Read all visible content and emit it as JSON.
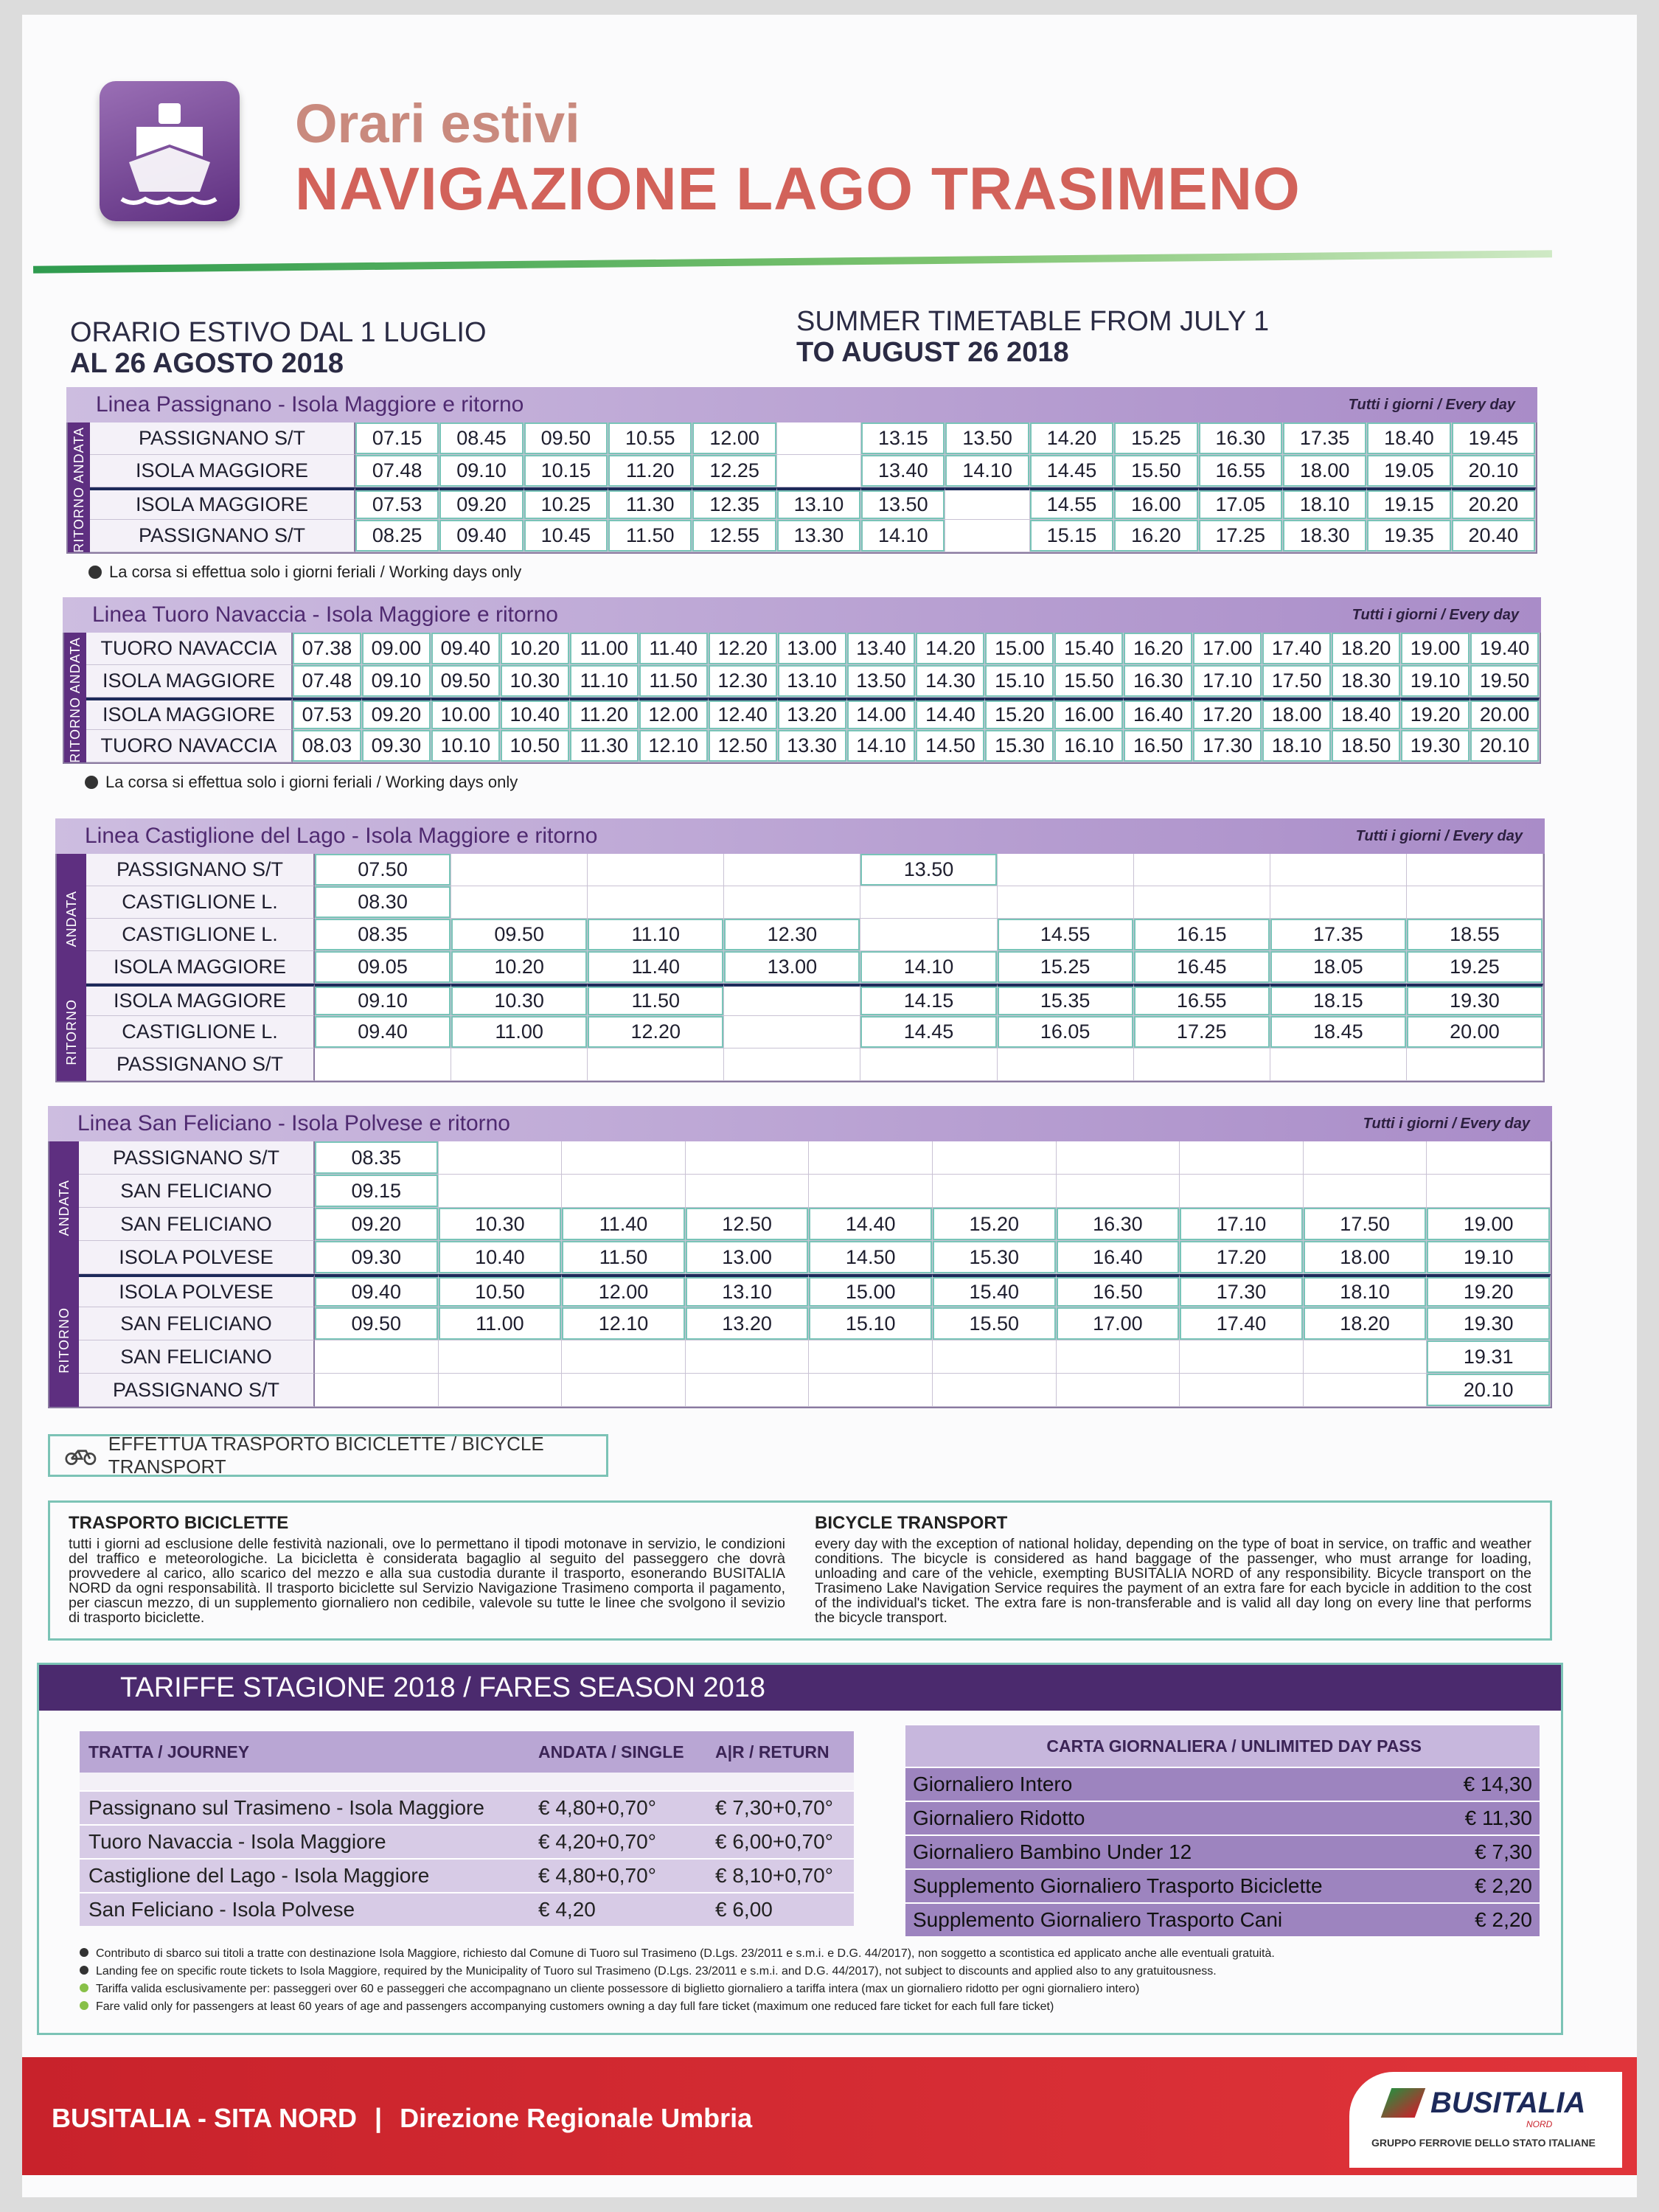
{
  "header": {
    "title": "Orari estivi",
    "subtitle": "NAVIGAZIONE LAGO TRASIMENO"
  },
  "validity": {
    "it_line1": "ORARIO ESTIVO DAL 1 LUGLIO",
    "it_line2": "AL 26 AGOSTO 2018",
    "en_line1": "SUMMER TIMETABLE FROM JULY 1",
    "en_line2": "TO AUGUST 26 2018"
  },
  "timetables": [
    {
      "title": "Linea Passignano - Isola Maggiore e ritorno",
      "every_day": "Tutti i giorni / Every day",
      "andata_label": "ANDATA",
      "ritorno_label": "RITORNO",
      "andata": [
        {
          "stop": "PASSIGNANO S/T",
          "times": [
            "07.15",
            "08.45",
            "09.50",
            "10.55",
            "12.00",
            null,
            "13.15",
            "13.50",
            "14.20",
            "15.25",
            "16.30",
            "17.35",
            "18.40",
            "19.45"
          ]
        },
        {
          "stop": "ISOLA MAGGIORE",
          "times": [
            "07.48",
            "09.10",
            "10.15",
            "11.20",
            "12.25",
            null,
            "13.40",
            "14.10",
            "14.45",
            "15.50",
            "16.55",
            "18.00",
            "19.05",
            "20.10"
          ]
        }
      ],
      "ritorno": [
        {
          "stop": "ISOLA MAGGIORE",
          "times": [
            "07.53",
            "09.20",
            "10.25",
            "11.30",
            "12.35",
            "13.10",
            "13.50",
            null,
            "14.55",
            "16.00",
            "17.05",
            "18.10",
            "19.15",
            "20.20"
          ]
        },
        {
          "stop": "PASSIGNANO S/T",
          "times": [
            "08.25",
            "09.40",
            "10.45",
            "11.50",
            "12.55",
            "13.30",
            "14.10",
            null,
            "15.15",
            "16.20",
            "17.25",
            "18.30",
            "19.35",
            "20.40"
          ]
        }
      ],
      "note": "La corsa si effettua solo i giorni feriali / Working days only"
    },
    {
      "title": "Linea Tuoro Navaccia - Isola Maggiore e ritorno",
      "every_day": "Tutti i giorni / Every day",
      "andata_label": "ANDATA",
      "ritorno_label": "RITORNO",
      "andata": [
        {
          "stop": "TUORO NAVACCIA",
          "times": [
            "07.38",
            "09.00",
            "09.40",
            "10.20",
            "11.00",
            "11.40",
            "12.20",
            "13.00",
            "13.40",
            "14.20",
            "15.00",
            "15.40",
            "16.20",
            "17.00",
            "17.40",
            "18.20",
            "19.00",
            "19.40"
          ]
        },
        {
          "stop": "ISOLA MAGGIORE",
          "times": [
            "07.48",
            "09.10",
            "09.50",
            "10.30",
            "11.10",
            "11.50",
            "12.30",
            "13.10",
            "13.50",
            "14.30",
            "15.10",
            "15.50",
            "16.30",
            "17.10",
            "17.50",
            "18.30",
            "19.10",
            "19.50"
          ]
        }
      ],
      "ritorno": [
        {
          "stop": "ISOLA MAGGIORE",
          "times": [
            "07.53",
            "09.20",
            "10.00",
            "10.40",
            "11.20",
            "12.00",
            "12.40",
            "13.20",
            "14.00",
            "14.40",
            "15.20",
            "16.00",
            "16.40",
            "17.20",
            "18.00",
            "18.40",
            "19.20",
            "20.00"
          ]
        },
        {
          "stop": "TUORO NAVACCIA",
          "times": [
            "08.03",
            "09.30",
            "10.10",
            "10.50",
            "11.30",
            "12.10",
            "12.50",
            "13.30",
            "14.10",
            "14.50",
            "15.30",
            "16.10",
            "16.50",
            "17.30",
            "18.10",
            "18.50",
            "19.30",
            "20.10"
          ]
        }
      ],
      "note": "La corsa si effettua solo i giorni feriali / Working days only"
    },
    {
      "title": "Linea Castiglione del Lago - Isola Maggiore e ritorno",
      "every_day": "Tutti i giorni / Every day",
      "andata_label": "ANDATA",
      "ritorno_label": "RITORNO",
      "andata": [
        {
          "stop": "PASSIGNANO S/T",
          "times": [
            "07.50",
            null,
            null,
            null,
            "13.50",
            null,
            null,
            null,
            null
          ]
        },
        {
          "stop": "CASTIGLIONE L.",
          "times": [
            "08.30",
            null,
            null,
            null,
            null,
            null,
            null,
            null,
            null
          ]
        },
        {
          "stop": "CASTIGLIONE L.",
          "times": [
            "08.35",
            "09.50",
            "11.10",
            "12.30",
            null,
            "14.55",
            "16.15",
            "17.35",
            "18.55"
          ]
        },
        {
          "stop": "ISOLA MAGGIORE",
          "times": [
            "09.05",
            "10.20",
            "11.40",
            "13.00",
            "14.10",
            "15.25",
            "16.45",
            "18.05",
            "19.25"
          ]
        }
      ],
      "ritorno": [
        {
          "stop": "ISOLA MAGGIORE",
          "times": [
            "09.10",
            "10.30",
            "11.50",
            null,
            "14.15",
            "15.35",
            "16.55",
            "18.15",
            "19.30"
          ]
        },
        {
          "stop": "CASTIGLIONE L.",
          "times": [
            "09.40",
            "11.00",
            "12.20",
            null,
            "14.45",
            "16.05",
            "17.25",
            "18.45",
            "20.00"
          ]
        },
        {
          "stop": "PASSIGNANO S/T",
          "times": [
            null,
            null,
            null,
            null,
            null,
            null,
            null,
            null,
            null
          ]
        }
      ]
    },
    {
      "title": "Linea San Feliciano - Isola Polvese e ritorno",
      "every_day": "Tutti i giorni / Every day",
      "andata_label": "ANDATA",
      "ritorno_label": "RITORNO",
      "andata": [
        {
          "stop": "PASSIGNANO S/T",
          "times": [
            "08.35",
            null,
            null,
            null,
            null,
            null,
            null,
            null,
            null,
            null
          ]
        },
        {
          "stop": "SAN FELICIANO",
          "times": [
            "09.15",
            null,
            null,
            null,
            null,
            null,
            null,
            null,
            null,
            null
          ]
        },
        {
          "stop": "SAN FELICIANO",
          "times": [
            "09.20",
            "10.30",
            "11.40",
            "12.50",
            "14.40",
            "15.20",
            "16.30",
            "17.10",
            "17.50",
            "19.00"
          ]
        },
        {
          "stop": "ISOLA POLVESE",
          "times": [
            "09.30",
            "10.40",
            "11.50",
            "13.00",
            "14.50",
            "15.30",
            "16.40",
            "17.20",
            "18.00",
            "19.10"
          ]
        }
      ],
      "ritorno": [
        {
          "stop": "ISOLA POLVESE",
          "times": [
            "09.40",
            "10.50",
            "12.00",
            "13.10",
            "15.00",
            "15.40",
            "16.50",
            "17.30",
            "18.10",
            "19.20"
          ]
        },
        {
          "stop": "SAN FELICIANO",
          "times": [
            "09.50",
            "11.00",
            "12.10",
            "13.20",
            "15.10",
            "15.50",
            "17.00",
            "17.40",
            "18.20",
            "19.30"
          ]
        },
        {
          "stop": "SAN FELICIANO",
          "times": [
            null,
            null,
            null,
            null,
            null,
            null,
            null,
            null,
            null,
            "19.31"
          ]
        },
        {
          "stop": "PASSIGNANO S/T",
          "times": [
            null,
            null,
            null,
            null,
            null,
            null,
            null,
            null,
            null,
            "20.10"
          ]
        }
      ]
    }
  ],
  "bicycle_tag": "EFFETTUA TRASPORTO BICICLETTE / BICYCLE TRANSPORT",
  "bicycle_info": {
    "it_title": "TRASPORTO BICICLETTE",
    "it_text": "tutti i giorni ad esclusione delle festività nazionali, ove lo permettano il tipodi motonave in servizio, le condizioni del traffico e meteorologiche. La bicicletta è considerata bagaglio al seguito del passeggero che dovrà provvedere al carico, allo scarico del mezzo e alla sua custodia durante il trasporto, esonerando BUSITALIA NORD da ogni responsabilità. Il trasporto biciclette sul Servizio Navigazione Trasimeno comporta il pagamento, per ciascun mezzo, di un supplemento giornaliero non cedibile, valevole su tutte le linee che svolgono il sevizio di trasporto biciclette.",
    "en_title": "BICYCLE TRANSPORT",
    "en_text": "every day with the exception of national holiday, depending on the type of boat in service, on traffic and weather conditions. The bicycle is considered as hand baggage of the passenger, who must arrange for loading, unloading and care of the vehicle, exempting BUSITALIA NORD of any responsibility. Bicycle transport on the Trasimeno Lake Navigation Service requires the payment of an extra fare for each bycicle in addition to the cost of the individual's ticket. The extra fare is non-transferable and is valid all day long on every line that performs the bicycle transport."
  },
  "fares": {
    "title": "TARIFFE STAGIONE 2018 / FARES SEASON 2018",
    "journey_table": {
      "headers": [
        "TRATTA / JOURNEY",
        "ANDATA / SINGLE",
        "A|R / RETURN"
      ],
      "rows": [
        [
          "Passignano sul Trasimeno - Isola Maggiore",
          "€ 4,80+0,70°",
          "€ 7,30+0,70°"
        ],
        [
          "Tuoro Navaccia - Isola Maggiore",
          "€ 4,20+0,70°",
          "€ 6,00+0,70°"
        ],
        [
          "Castiglione del Lago - Isola Maggiore",
          "€ 4,80+0,70°",
          "€ 8,10+0,70°"
        ],
        [
          "San Feliciano - Isola Polvese",
          "€ 4,20",
          "€ 6,00"
        ]
      ]
    },
    "day_pass": {
      "header": "CARTA GIORNALIERA / UNLIMITED DAY PASS",
      "rows": [
        [
          "Giornaliero Intero",
          "€ 14,30"
        ],
        [
          "Giornaliero Ridotto",
          "€ 11,30"
        ],
        [
          "Giornaliero Bambino Under 12",
          "€ 7,30"
        ],
        [
          "Supplemento Giornaliero Trasporto Biciclette",
          "€ 2,20"
        ],
        [
          "Supplemento Giornaliero Trasporto Cani",
          "€ 2,20"
        ]
      ]
    },
    "footnotes": [
      "Contributo di sbarco sui titoli a tratte con destinazione Isola Maggiore, richiesto dal Comune di Tuoro sul Trasimeno (D.Lgs. 23/2011 e s.m.i. e D.G. 44/2017), non soggetto a scontistica ed applicato anche alle eventuali gratuità.",
      "Landing fee on specific route tickets to Isola Maggiore, required by the Municipality of Tuoro sul Trasimeno (D.Lgs. 23/2011 e s.m.i. and D.G. 44/2017), not subject to discounts and applied also to any gratuitousness.",
      "Tariffa valida esclusivamente per: passeggeri over 60 e passeggeri che accompagnano un cliente possessore di biglietto giornaliero a tariffa intera (max un giornaliero ridotto per ogni giornaliero intero)",
      "Fare valid only for passengers at least 60 years of age and passengers accompanying customers owning a day full fare ticket (maximum one reduced fare ticket for each full fare ticket)"
    ]
  },
  "footer": {
    "company": "BUSITALIA - SITA NORD",
    "separator": "|",
    "division": "Direzione Regionale Umbria",
    "logo_name": "BUSITALIA",
    "logo_sub": "NORD",
    "group": "GRUPPO FERROVIE DELLO STATO ITALIANE"
  }
}
